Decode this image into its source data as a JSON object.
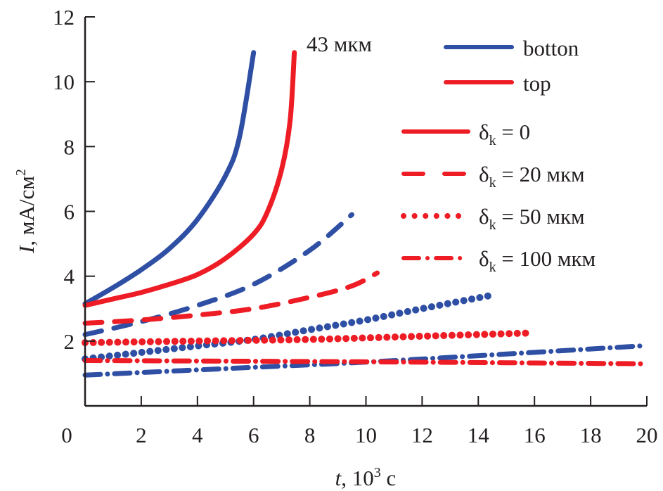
{
  "chart_data": {
    "type": "line",
    "title": "",
    "xlabel": {
      "var": "t",
      "rest": ", 10",
      "sup": "3",
      "unit": " с"
    },
    "ylabel": {
      "var": "I",
      "rest": ", мА/см",
      "sup": "2"
    },
    "xlim": [
      0,
      20
    ],
    "ylim": [
      0,
      12
    ],
    "x_ticks": [
      0,
      2,
      4,
      6,
      8,
      10,
      12,
      14,
      16,
      18,
      20
    ],
    "y_ticks": [
      0,
      2,
      4,
      6,
      8,
      10,
      12
    ],
    "grid": false,
    "legend_placement": "top-right",
    "annotation": "43 мкм",
    "colors": {
      "botton": "#2e4fa3",
      "top": "#ee1c25",
      "axis": "#231f20"
    },
    "legend_color": [
      {
        "label": "botton",
        "color_key": "botton"
      },
      {
        "label": "top",
        "color_key": "top"
      }
    ],
    "legend_style": [
      {
        "sym": "δ",
        "sub": "k",
        "rest": " = 0",
        "style": "solid"
      },
      {
        "sym": "δ",
        "sub": "k",
        "rest": " = 20 мкм",
        "style": "dashed"
      },
      {
        "sym": "δ",
        "sub": "k",
        "rest": " = 50 мкм",
        "style": "dotted"
      },
      {
        "sym": "δ",
        "sub": "k",
        "rest": " = 100 мкм",
        "style": "dashdot"
      }
    ],
    "series": [
      {
        "name": "botton, δk = 0",
        "color_key": "botton",
        "style": "solid",
        "x": [
          0,
          1,
          2,
          3,
          4,
          5,
          5.5,
          6.0
        ],
        "y": [
          3.15,
          3.65,
          4.2,
          4.85,
          5.75,
          7.1,
          8.3,
          10.9
        ]
      },
      {
        "name": "top, δk = 0",
        "color_key": "top",
        "style": "solid",
        "x": [
          0,
          1,
          2,
          3,
          4,
          5,
          6,
          6.5,
          7.0,
          7.3,
          7.45
        ],
        "y": [
          3.1,
          3.3,
          3.5,
          3.75,
          4.05,
          4.55,
          5.3,
          6.0,
          7.3,
          8.8,
          10.9
        ]
      },
      {
        "name": "botton, δk = 20 мкм",
        "color_key": "botton",
        "style": "dashed",
        "x": [
          0,
          2,
          4,
          6,
          8,
          9.5
        ],
        "y": [
          2.2,
          2.6,
          3.1,
          3.75,
          4.8,
          5.9
        ]
      },
      {
        "name": "top, δk = 20 мкм",
        "color_key": "top",
        "style": "dashed",
        "x": [
          0,
          2,
          4,
          6,
          8,
          9.5,
          10.4
        ],
        "y": [
          2.55,
          2.65,
          2.8,
          3.0,
          3.35,
          3.7,
          4.1
        ]
      },
      {
        "name": "botton, δk = 50 мкм",
        "color_key": "botton",
        "style": "dotted",
        "x": [
          0,
          2,
          4,
          6,
          8,
          10,
          12,
          14.4
        ],
        "y": [
          1.45,
          1.65,
          1.85,
          2.05,
          2.35,
          2.65,
          3.0,
          3.4
        ]
      },
      {
        "name": "top, δk = 50 мкм",
        "color_key": "top",
        "style": "dotted",
        "x": [
          0,
          4,
          8,
          12,
          15.9
        ],
        "y": [
          1.95,
          2.0,
          2.05,
          2.15,
          2.25
        ]
      },
      {
        "name": "botton, δk = 100 мкм",
        "color_key": "botton",
        "style": "dashdot",
        "x": [
          0,
          5,
          10,
          15,
          19.8
        ],
        "y": [
          0.95,
          1.15,
          1.35,
          1.6,
          1.85
        ]
      },
      {
        "name": "top, δk = 100 мкм",
        "color_key": "top",
        "style": "dashdot",
        "x": [
          0,
          5,
          10,
          15,
          19.8
        ],
        "y": [
          1.4,
          1.38,
          1.36,
          1.33,
          1.3
        ]
      }
    ]
  }
}
